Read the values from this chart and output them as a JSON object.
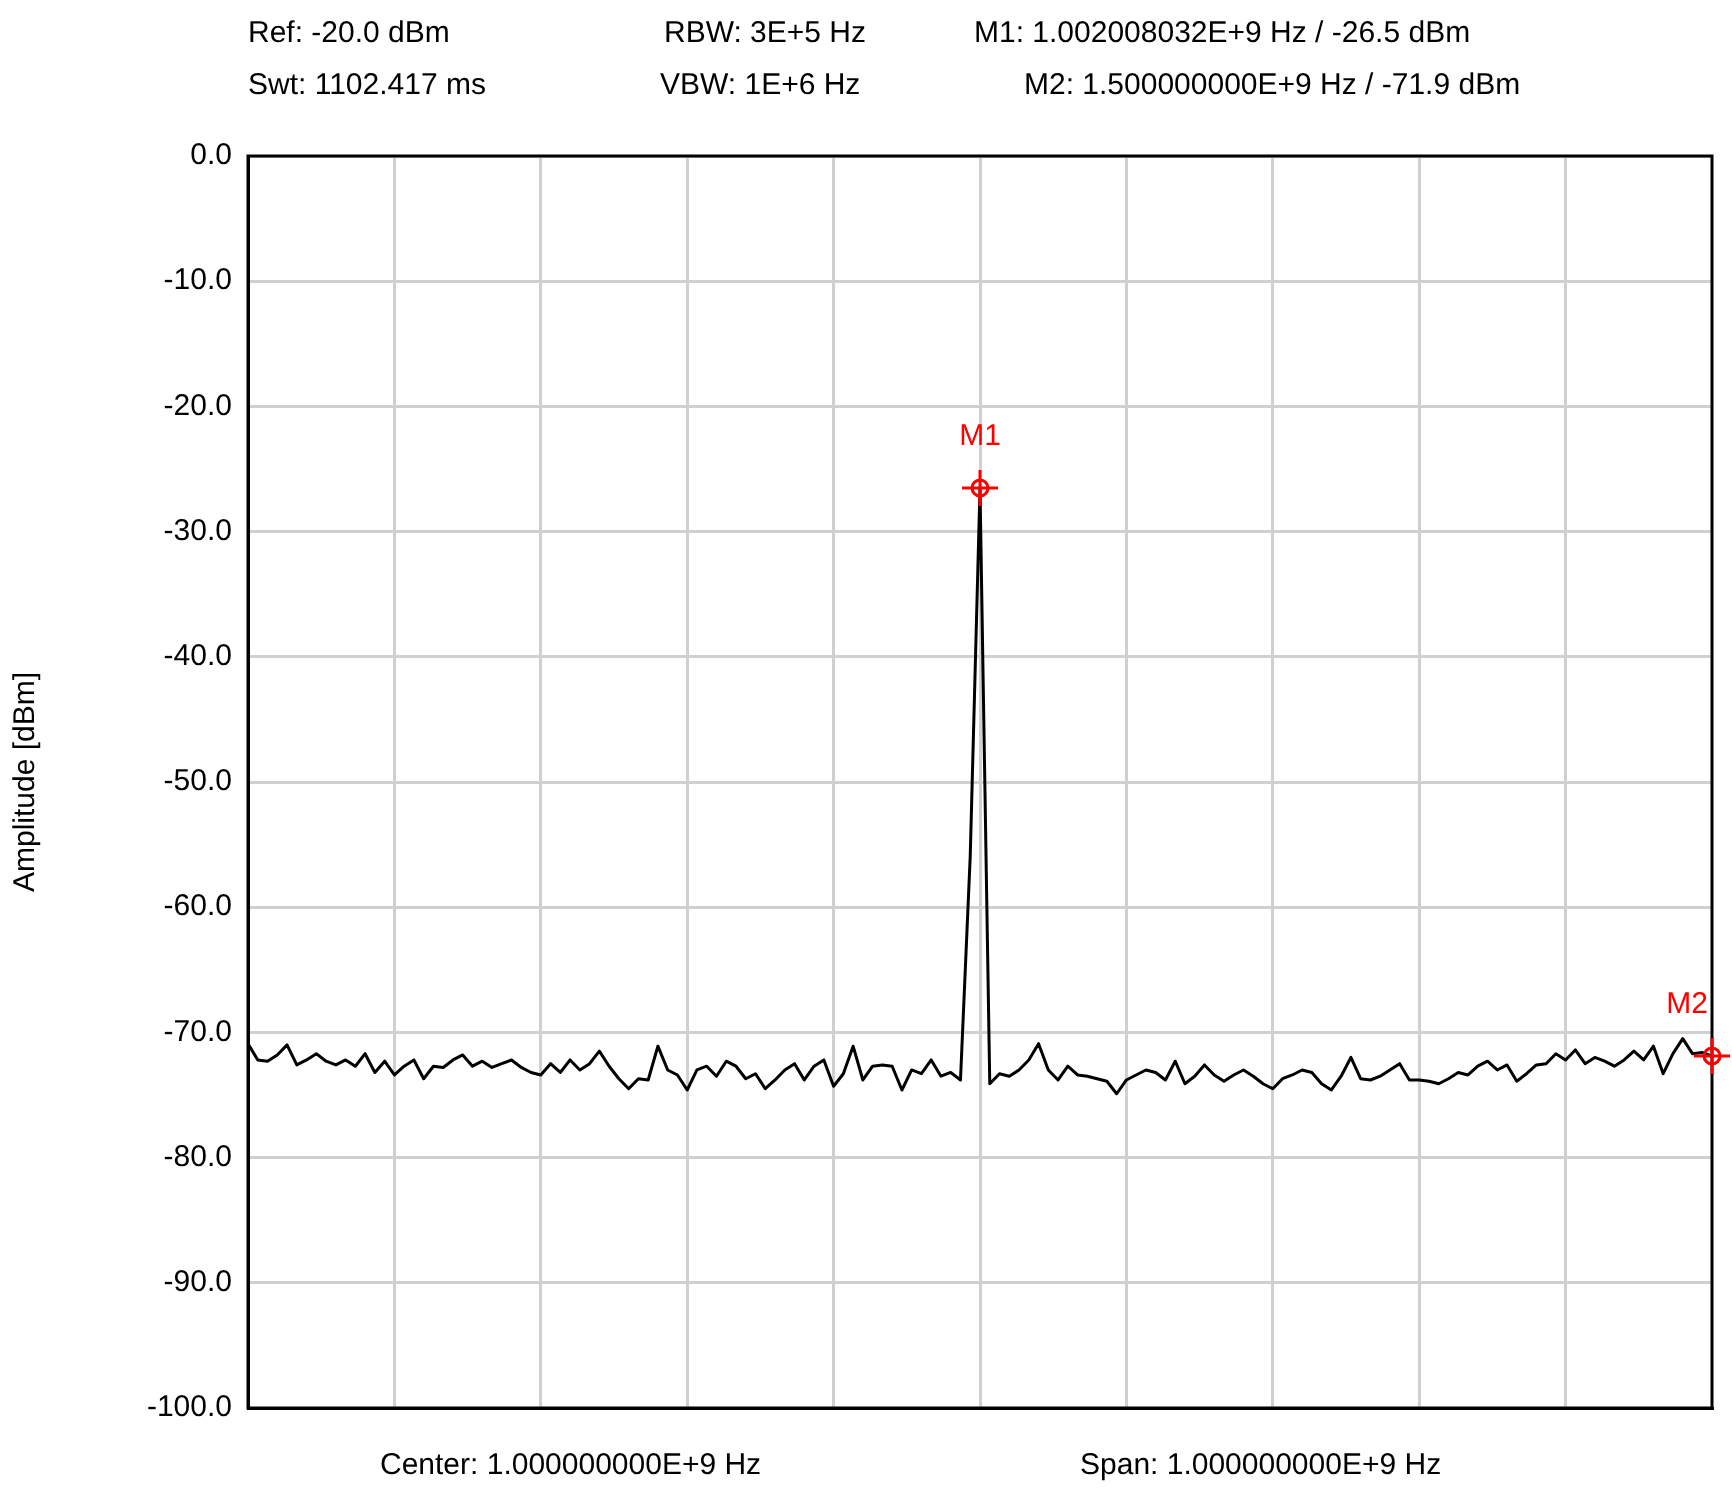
{
  "chart_data": {
    "type": "line",
    "ylabel": "Amplitude [dBm]",
    "annotations": [
      "Ref:  -20.0 dBm",
      "RBW: 3E+5 Hz",
      "M1: 1.002008032E+9 Hz / -26.5 dBm",
      "Swt: 1102.417 ms",
      "VBW: 1E+6 Hz",
      "M2: 1.500000000E+9 Hz / -71.9 dBm",
      "Center: 1.000000000E+9 Hz",
      "Span: 1.000000000E+9 Hz",
      {
        "text": "M1",
        "y": -26.5
      },
      {
        "text": "M2",
        "y": -71.9
      }
    ],
    "categories": [
      null,
      null,
      null,
      null,
      null,
      null,
      null,
      null,
      null,
      null,
      null,
      null,
      null,
      null,
      null,
      null,
      null,
      null,
      null,
      null,
      null,
      null,
      null,
      null,
      null,
      null,
      null,
      null,
      null,
      null,
      null,
      null,
      null,
      null,
      null,
      null,
      null,
      null,
      null,
      null,
      null,
      null,
      null,
      null,
      null,
      null,
      null,
      null,
      null,
      null,
      null,
      null,
      null,
      null,
      null,
      null,
      null,
      null,
      null,
      null,
      null,
      null,
      null,
      null,
      null,
      null,
      null,
      null,
      null,
      null,
      null,
      null,
      null,
      null,
      null,
      null,
      null,
      null,
      null,
      null,
      null,
      null,
      null,
      null,
      null,
      null,
      null,
      null,
      null,
      null,
      null,
      null,
      null,
      null,
      null,
      null,
      null,
      null,
      null,
      null,
      null,
      null,
      null,
      null,
      null,
      null,
      null,
      null,
      null,
      null,
      null,
      null,
      null,
      null,
      null,
      null,
      null,
      null,
      null,
      null,
      null,
      null,
      null,
      null,
      null,
      null,
      null,
      null,
      null,
      null,
      null,
      null,
      null,
      null,
      null,
      null,
      null,
      null,
      null,
      null,
      null,
      null,
      null,
      null,
      null,
      null,
      null,
      null,
      null,
      null,
      null
    ],
    "ylim": [
      -100,
      0
    ],
    "yticks": [
      {
        "value": 0,
        "label": "0.0"
      },
      {
        "value": -10,
        "label": "-10.0"
      },
      {
        "value": -20,
        "label": "-20.0"
      },
      {
        "value": -30,
        "label": "-30.0"
      },
      {
        "value": -40,
        "label": "-40.0"
      },
      {
        "value": -50,
        "label": "-50.0"
      },
      {
        "value": -60,
        "label": "-60.0"
      },
      {
        "value": -70,
        "label": "-70.0"
      },
      {
        "value": -80,
        "label": "-80.0"
      },
      {
        "value": -90,
        "label": "-90.0"
      },
      {
        "value": -100,
        "label": "-100.0"
      }
    ],
    "grid": true,
    "legend": false,
    "tick_labels": "y",
    "marker": "none",
    "line_style": "solid",
    "series": [
      {
        "color": "#000000",
        "values": [
          -70.9,
          -72.2,
          -72.3,
          -71.8,
          -71.0,
          -72.6,
          -72.2,
          -71.7,
          -72.3,
          -72.6,
          -72.2,
          -72.7,
          -71.7,
          -73.2,
          -72.3,
          -73.4,
          -72.7,
          -72.2,
          -73.7,
          -72.7,
          -72.8,
          -72.2,
          -71.8,
          -72.7,
          -72.3,
          -72.8,
          -72.5,
          -72.2,
          -72.8,
          -73.2,
          -73.4,
          -72.5,
          -73.2,
          -72.2,
          -73.0,
          -72.5,
          -71.5,
          -72.7,
          -73.7,
          -74.5,
          -73.7,
          -73.8,
          -71.1,
          -73.0,
          -73.4,
          -74.6,
          -73.0,
          -72.7,
          -73.5,
          -72.3,
          -72.7,
          -73.7,
          -73.3,
          -74.5,
          -73.8,
          -73.0,
          -72.5,
          -73.8,
          -72.7,
          -72.2,
          -74.3,
          -73.3,
          -71.1,
          -73.8,
          -72.7,
          -72.6,
          -72.7,
          -74.6,
          -73.0,
          -73.3,
          -72.2,
          -73.5,
          -73.2,
          -73.8,
          -55.9,
          -26.5,
          -74.1,
          -73.3,
          -73.5,
          -73.0,
          -72.2,
          -70.9,
          -73.0,
          -73.8,
          -72.7,
          -73.4,
          -73.5,
          -73.7,
          -73.9,
          -74.9,
          -73.8,
          -73.4,
          -73.0,
          -73.2,
          -73.8,
          -72.3,
          -74.1,
          -73.5,
          -72.6,
          -73.4,
          -73.9,
          -73.4,
          -73.0,
          -73.5,
          -74.1,
          -74.5,
          -73.7,
          -73.4,
          -73.0,
          -73.2,
          -74.1,
          -74.6,
          -73.5,
          -72.0,
          -73.7,
          -73.8,
          -73.5,
          -73.0,
          -72.5,
          -73.8,
          -73.8,
          -73.9,
          -74.1,
          -73.7,
          -73.2,
          -73.4,
          -72.7,
          -72.3,
          -73.0,
          -72.6,
          -73.9,
          -73.3,
          -72.6,
          -72.5,
          -71.7,
          -72.2,
          -71.4,
          -72.5,
          -72.0,
          -72.3,
          -72.7,
          -72.2,
          -71.5,
          -72.2,
          -71.1,
          -73.3,
          -71.7,
          -70.5,
          -71.7,
          -71.6,
          -71.9
        ]
      }
    ]
  }
}
